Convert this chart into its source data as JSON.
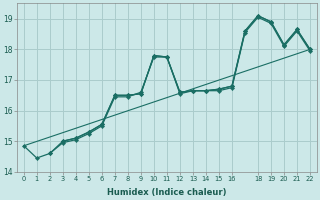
{
  "xlabel": "Humidex (Indice chaleur)",
  "bg_color": "#cce8e8",
  "grid_color": "#aacccc",
  "line_color": "#1a6e64",
  "xlim": [
    -0.5,
    22.5
  ],
  "ylim": [
    14.0,
    19.5
  ],
  "xticks": [
    0,
    1,
    2,
    3,
    4,
    5,
    6,
    7,
    8,
    9,
    10,
    11,
    12,
    13,
    14,
    15,
    16,
    18,
    19,
    20,
    21,
    22
  ],
  "yticks": [
    14,
    15,
    16,
    17,
    18,
    19
  ],
  "series": [
    {
      "x": [
        0,
        1,
        2,
        3,
        4,
        5,
        6,
        7,
        8,
        9,
        10,
        11,
        12,
        13,
        14,
        15,
        16,
        17,
        18,
        19,
        20,
        21,
        22
      ],
      "y": [
        14.85,
        14.45,
        14.6,
        15.0,
        15.1,
        15.3,
        15.55,
        16.5,
        16.5,
        16.55,
        17.8,
        17.75,
        16.6,
        16.65,
        16.65,
        16.7,
        16.8,
        18.6,
        19.1,
        18.9,
        18.15,
        18.65,
        18.0
      ]
    },
    {
      "x": [
        2,
        3,
        4,
        5,
        6,
        7,
        8,
        9,
        10,
        11,
        12,
        13,
        14,
        15,
        16,
        17,
        18,
        19,
        20,
        21,
        22
      ],
      "y": [
        14.6,
        14.95,
        15.05,
        15.25,
        15.5,
        16.45,
        16.45,
        16.6,
        17.75,
        17.75,
        16.55,
        16.65,
        16.65,
        16.65,
        16.75,
        18.55,
        19.05,
        18.85,
        18.1,
        18.6,
        17.95
      ]
    },
    {
      "x": [
        3,
        4,
        5,
        6,
        7,
        8,
        9,
        10,
        11,
        12,
        13,
        14,
        15,
        16,
        17,
        18,
        19,
        20,
        21,
        22
      ],
      "y": [
        15.0,
        15.1,
        15.3,
        15.55,
        16.5,
        16.5,
        16.55,
        17.8,
        17.75,
        16.6,
        16.65,
        16.65,
        16.7,
        16.8,
        18.6,
        19.1,
        18.9,
        18.15,
        18.65,
        18.0
      ]
    },
    {
      "x": [
        0,
        22
      ],
      "y": [
        14.85,
        18.0
      ]
    }
  ]
}
